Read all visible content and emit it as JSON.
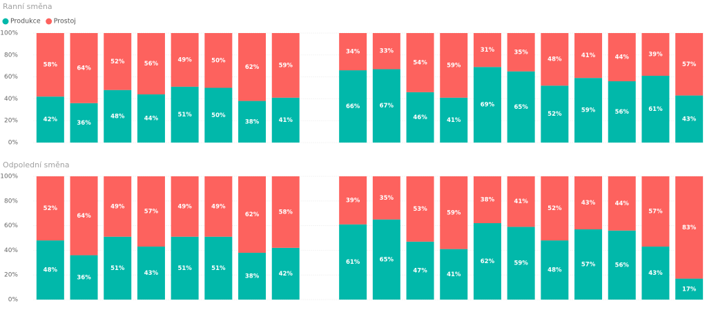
{
  "chart_data": [
    {
      "type": "stacked_bar_100",
      "title": "Ranní směna",
      "categories": [
        null,
        null,
        null,
        null,
        null,
        null,
        null,
        null,
        null,
        null,
        null,
        null,
        null,
        null,
        null,
        null,
        null,
        null,
        null,
        null
      ],
      "series": [
        {
          "name": "Produkce",
          "color": "#01b8aa",
          "values": [
            42,
            36,
            48,
            44,
            51,
            50,
            38,
            41,
            null,
            66,
            67,
            46,
            41,
            69,
            65,
            52,
            59,
            56,
            61,
            43
          ],
          "value_labels": [
            "42%",
            "36%",
            "48%",
            "44%",
            "51%",
            "50%",
            "38%",
            "41%",
            null,
            "66%",
            "67%",
            "46%",
            "41%",
            "69%",
            "65%",
            "52%",
            "59%",
            "56%",
            "61%",
            "43%"
          ]
        },
        {
          "name": "Prostoj",
          "color": "#fd625e",
          "values": [
            58,
            64,
            52,
            56,
            49,
            50,
            62,
            59,
            null,
            34,
            33,
            54,
            59,
            31,
            35,
            48,
            41,
            44,
            39,
            57
          ],
          "value_labels": [
            "58%",
            "64%",
            "52%",
            "56%",
            "49%",
            "50%",
            "62%",
            "59%",
            null,
            "34%",
            "33%",
            "54%",
            "59%",
            "31%",
            "35%",
            "48%",
            "41%",
            "44%",
            "39%",
            "57%"
          ]
        }
      ],
      "ylim": [
        0,
        100
      ],
      "yticks": [
        {
          "value": 0,
          "label": "0%"
        },
        {
          "value": 20,
          "label": "20%"
        },
        {
          "value": 40,
          "label": "40%"
        },
        {
          "value": 60,
          "label": "60%"
        },
        {
          "value": 80,
          "label": "80%"
        },
        {
          "value": 100,
          "label": "100%"
        }
      ],
      "grid": true,
      "legend": "top-left"
    },
    {
      "type": "stacked_bar_100",
      "title": "Odpolední směna",
      "categories": [
        null,
        null,
        null,
        null,
        null,
        null,
        null,
        null,
        null,
        null,
        null,
        null,
        null,
        null,
        null,
        null,
        null,
        null,
        null,
        null
      ],
      "series": [
        {
          "color": "#01b8aa",
          "values": [
            48,
            36,
            51,
            43,
            51,
            51,
            38,
            42,
            null,
            61,
            65,
            47,
            41,
            62,
            59,
            48,
            57,
            56,
            43,
            17
          ],
          "value_labels": [
            "48%",
            "36%",
            "51%",
            "43%",
            "51%",
            "51%",
            "38%",
            "42%",
            null,
            "61%",
            "65%",
            "47%",
            "41%",
            "62%",
            "59%",
            "48%",
            "57%",
            "56%",
            "43%",
            "17%"
          ]
        },
        {
          "color": "#fd625e",
          "values": [
            52,
            64,
            49,
            57,
            49,
            49,
            62,
            58,
            null,
            39,
            35,
            53,
            59,
            38,
            41,
            52,
            43,
            44,
            57,
            83
          ],
          "value_labels": [
            "52%",
            "64%",
            "49%",
            "57%",
            "49%",
            "49%",
            "62%",
            "58%",
            null,
            "39%",
            "35%",
            "53%",
            "59%",
            "38%",
            "41%",
            "52%",
            "43%",
            "44%",
            "57%",
            "83%"
          ]
        }
      ],
      "ylim": [
        0,
        100
      ],
      "yticks": [
        {
          "value": 0,
          "label": "0%"
        },
        {
          "value": 20,
          "label": "20%"
        },
        {
          "value": 40,
          "label": "40%"
        },
        {
          "value": 60,
          "label": "60%"
        },
        {
          "value": 80,
          "label": "80%"
        },
        {
          "value": 100,
          "label": "100%"
        }
      ],
      "grid": true
    }
  ]
}
